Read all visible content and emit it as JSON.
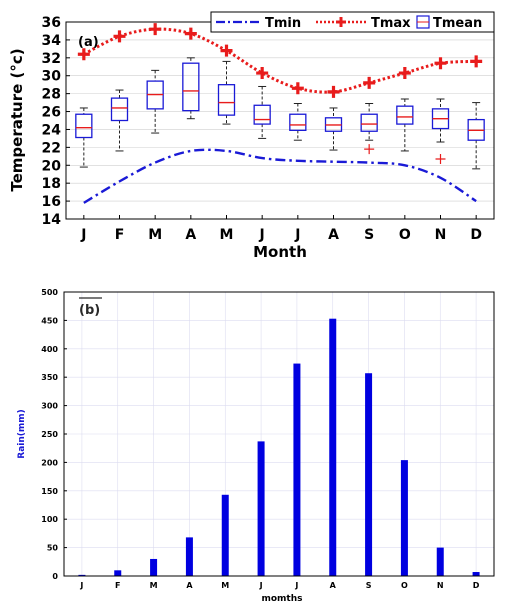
{
  "chart_data": [
    {
      "type": "box",
      "panel_label": "(a)",
      "xlabel": "Month",
      "ylabel": "Temperature (°c)",
      "categories": [
        "J",
        "F",
        "M",
        "A",
        "M",
        "J",
        "J",
        "A",
        "S",
        "O",
        "N",
        "D"
      ],
      "ylim": [
        14,
        36
      ],
      "yticks": [
        14,
        16,
        18,
        20,
        22,
        24,
        26,
        28,
        30,
        32,
        34,
        36
      ],
      "legend": {
        "position": "top-right",
        "entries": [
          "Tmin",
          "Tmax",
          "Tmean"
        ]
      },
      "colors": {
        "Tmin": "#1a1ad6",
        "Tmax": "#e81c1c",
        "Tmean": "#1a1ad6",
        "median": "#e81c1c"
      },
      "series": [
        {
          "name": "Tmin",
          "style": "dash-dot",
          "values": [
            15.8,
            18.2,
            20.3,
            21.6,
            21.6,
            20.8,
            20.5,
            20.4,
            20.3,
            20.0,
            18.6,
            16.0
          ]
        },
        {
          "name": "Tmax",
          "style": "dotted-cross",
          "values": [
            32.4,
            34.4,
            35.2,
            34.7,
            32.8,
            30.3,
            28.6,
            28.2,
            29.2,
            30.3,
            31.4,
            31.6
          ]
        },
        {
          "name": "Tmean",
          "boxes": [
            {
              "whislo": 19.8,
              "q1": 23.1,
              "med": 24.2,
              "q3": 25.7,
              "whishi": 26.4,
              "fliers": []
            },
            {
              "whislo": 21.6,
              "q1": 25.0,
              "med": 26.4,
              "q3": 27.5,
              "whishi": 28.4,
              "fliers": []
            },
            {
              "whislo": 23.6,
              "q1": 26.3,
              "med": 27.9,
              "q3": 29.4,
              "whishi": 30.6,
              "fliers": []
            },
            {
              "whislo": 25.2,
              "q1": 26.1,
              "med": 28.3,
              "q3": 31.4,
              "whishi": 32.0,
              "fliers": []
            },
            {
              "whislo": 24.6,
              "q1": 25.6,
              "med": 27.0,
              "q3": 29.0,
              "whishi": 31.6,
              "fliers": []
            },
            {
              "whislo": 23.0,
              "q1": 24.6,
              "med": 25.1,
              "q3": 26.7,
              "whishi": 28.8,
              "fliers": []
            },
            {
              "whislo": 22.8,
              "q1": 23.9,
              "med": 24.5,
              "q3": 25.7,
              "whishi": 26.9,
              "fliers": []
            },
            {
              "whislo": 21.7,
              "q1": 23.8,
              "med": 24.5,
              "q3": 25.3,
              "whishi": 26.4,
              "fliers": []
            },
            {
              "whislo": 22.8,
              "q1": 23.8,
              "med": 24.6,
              "q3": 25.7,
              "whishi": 26.9,
              "fliers": [
                21.8
              ]
            },
            {
              "whislo": 21.6,
              "q1": 24.6,
              "med": 25.4,
              "q3": 26.6,
              "whishi": 27.4,
              "fliers": []
            },
            {
              "whislo": 22.6,
              "q1": 24.1,
              "med": 25.2,
              "q3": 26.3,
              "whishi": 27.4,
              "fliers": [
                20.7
              ]
            },
            {
              "whislo": 19.6,
              "q1": 22.8,
              "med": 23.9,
              "q3": 25.1,
              "whishi": 27.0,
              "fliers": []
            }
          ]
        }
      ]
    },
    {
      "type": "bar",
      "panel_label": "(b)",
      "xlabel": "momths",
      "ylabel": "Rain(mm)",
      "categories": [
        "J",
        "F",
        "M",
        "A",
        "M",
        "J",
        "J",
        "A",
        "S",
        "O",
        "N",
        "D"
      ],
      "values": [
        2,
        10,
        30,
        68,
        143,
        237,
        374,
        453,
        357,
        204,
        50,
        7
      ],
      "ylim": [
        0,
        500
      ],
      "yticks": [
        0,
        50,
        100,
        150,
        200,
        250,
        300,
        350,
        400,
        450,
        500
      ],
      "grid": true,
      "colors": {
        "bar": "#0000e0"
      }
    }
  ]
}
